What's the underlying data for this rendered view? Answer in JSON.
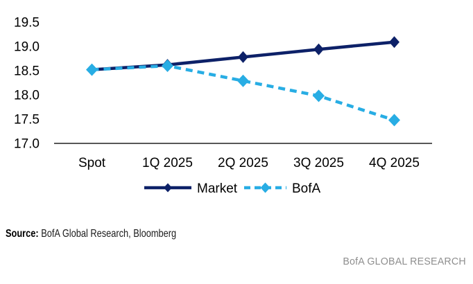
{
  "chart_data": {
    "type": "line",
    "title": "",
    "categories": [
      "Spot",
      "1Q 2025",
      "2Q 2025",
      "3Q 2025",
      "4Q 2025"
    ],
    "series": [
      {
        "name": "Market",
        "values": [
          18.52,
          18.62,
          18.78,
          18.94,
          19.09
        ],
        "color": "#0d2168",
        "line_style": "solid",
        "marker": "diamond"
      },
      {
        "name": "BofA",
        "values": [
          18.52,
          18.6,
          18.29,
          17.98,
          17.48
        ],
        "color": "#28ade4",
        "line_style": "dashed",
        "marker": "diamond"
      }
    ],
    "ylim": [
      17.0,
      19.5
    ],
    "ytick_step": 0.5,
    "ytick_labels": [
      "17.0",
      "17.5",
      "18.0",
      "18.5",
      "19.0",
      "19.5"
    ],
    "xlabel": "",
    "ylabel": "",
    "grid": false,
    "legend_position": "bottom",
    "axis_color": "#3f3f3f",
    "text_color": "#000000"
  },
  "footer": {
    "source_label": "Source:",
    "source_text": " BofA Global Research, Bloomberg",
    "watermark": "BofA GLOBAL RESEARCH"
  }
}
